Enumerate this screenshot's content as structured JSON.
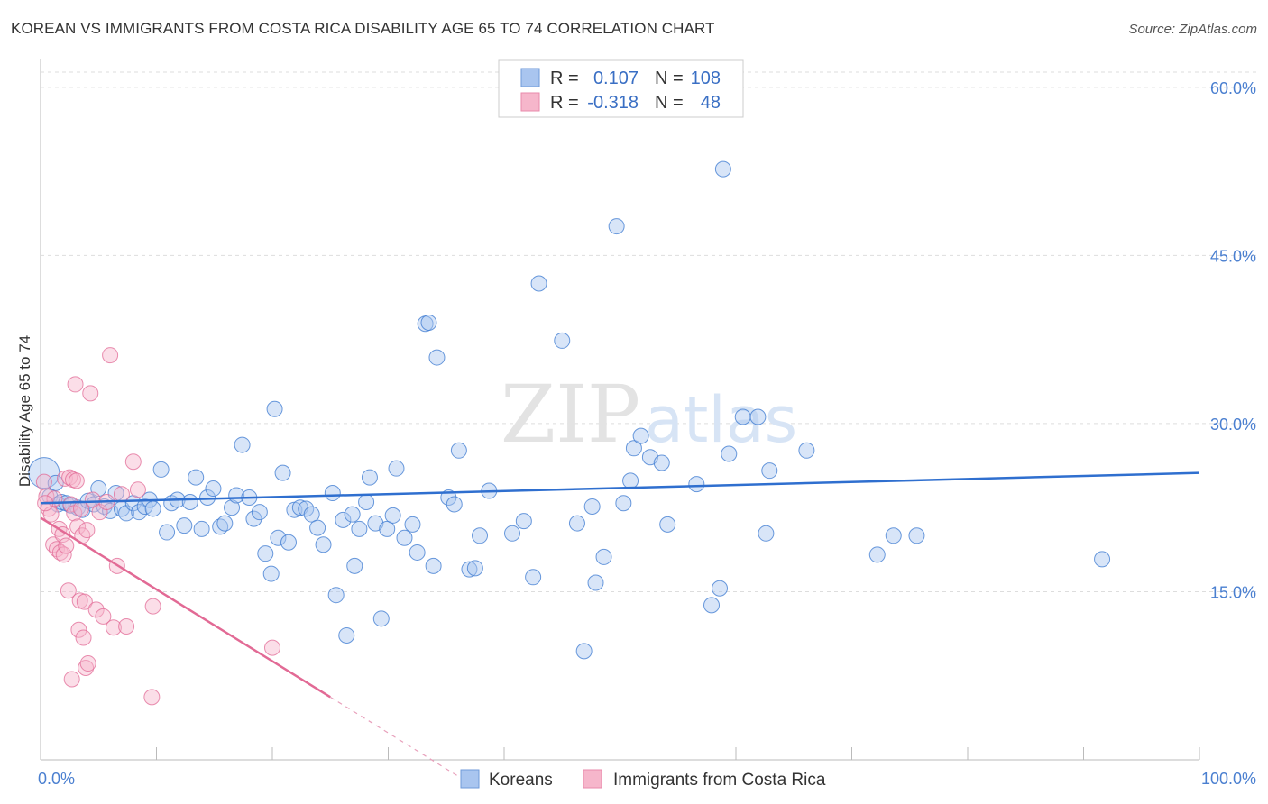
{
  "title": "KOREAN VS IMMIGRANTS FROM COSTA RICA DISABILITY AGE 65 TO 74 CORRELATION CHART",
  "source": "Source: ZipAtlas.com",
  "watermark": {
    "zip": "ZIP",
    "atlas": "atlas"
  },
  "colors": {
    "blue": "#3a78d0",
    "blue_fill": "#a9c5ef",
    "pink": "#e26a95",
    "pink_fill": "#f6b6cb",
    "grid": "#dddddd"
  },
  "chart_data": {
    "type": "scatter",
    "title": "KOREAN VS IMMIGRANTS FROM COSTA RICA DISABILITY AGE 65 TO 74 CORRELATION CHART",
    "xlabel": "",
    "ylabel": "Disability Age 65 to 74",
    "xlim": [
      0,
      100
    ],
    "ylim": [
      0,
      62
    ],
    "x_tick_labels": [
      "0.0%",
      "100.0%"
    ],
    "y_ticks": [
      15,
      30,
      45,
      60
    ],
    "y_tick_labels": [
      "15.0%",
      "30.0%",
      "45.0%",
      "60.0%"
    ],
    "grid": true,
    "legend_position": "top-center",
    "stats_legend": [
      {
        "r_label": "R =",
        "r_value": "0.107",
        "n_label": "N =",
        "n_value": "108"
      },
      {
        "r_label": "R =",
        "r_value": "-0.318",
        "n_label": "N =",
        "n_value": "48"
      }
    ],
    "series": [
      {
        "name": "Koreans",
        "color": "#3a78d0",
        "trend": {
          "x": [
            0,
            100
          ],
          "y": [
            22.9,
            25.6
          ]
        },
        "points": [
          [
            0.3,
            25.6
          ],
          [
            0.8,
            23.5
          ],
          [
            1.3,
            24.7
          ],
          [
            1.5,
            22.8
          ],
          [
            1.8,
            23.0
          ],
          [
            2.2,
            22.9
          ],
          [
            2.6,
            22.7
          ],
          [
            3.2,
            22.5
          ],
          [
            3.6,
            22.3
          ],
          [
            4.1,
            23.1
          ],
          [
            4.6,
            22.8
          ],
          [
            5.0,
            24.2
          ],
          [
            5.5,
            22.6
          ],
          [
            6.0,
            22.2
          ],
          [
            6.5,
            23.8
          ],
          [
            7.0,
            22.4
          ],
          [
            7.4,
            22.0
          ],
          [
            8.0,
            22.9
          ],
          [
            8.5,
            22.1
          ],
          [
            9.0,
            22.6
          ],
          [
            9.4,
            23.2
          ],
          [
            9.7,
            22.4
          ],
          [
            10.4,
            25.9
          ],
          [
            10.9,
            20.3
          ],
          [
            11.3,
            22.9
          ],
          [
            11.8,
            23.2
          ],
          [
            12.4,
            20.9
          ],
          [
            12.9,
            23.0
          ],
          [
            13.4,
            25.2
          ],
          [
            13.9,
            20.6
          ],
          [
            14.4,
            23.4
          ],
          [
            14.9,
            24.2
          ],
          [
            15.5,
            20.8
          ],
          [
            15.9,
            21.1
          ],
          [
            16.5,
            22.5
          ],
          [
            16.9,
            23.6
          ],
          [
            17.4,
            28.1
          ],
          [
            18.0,
            23.4
          ],
          [
            18.4,
            21.5
          ],
          [
            18.9,
            22.1
          ],
          [
            19.4,
            18.4
          ],
          [
            19.9,
            16.6
          ],
          [
            20.2,
            31.3
          ],
          [
            20.5,
            19.8
          ],
          [
            20.9,
            25.6
          ],
          [
            21.4,
            19.4
          ],
          [
            21.9,
            22.3
          ],
          [
            22.4,
            22.5
          ],
          [
            22.9,
            22.4
          ],
          [
            23.4,
            21.9
          ],
          [
            23.9,
            20.7
          ],
          [
            24.4,
            19.2
          ],
          [
            25.2,
            23.8
          ],
          [
            25.5,
            14.7
          ],
          [
            26.1,
            21.4
          ],
          [
            26.4,
            11.1
          ],
          [
            26.9,
            21.9
          ],
          [
            27.1,
            17.3
          ],
          [
            27.5,
            20.6
          ],
          [
            28.1,
            23.0
          ],
          [
            28.4,
            25.2
          ],
          [
            28.9,
            21.1
          ],
          [
            29.4,
            12.6
          ],
          [
            29.9,
            20.6
          ],
          [
            30.4,
            21.8
          ],
          [
            30.7,
            26.0
          ],
          [
            31.4,
            19.8
          ],
          [
            32.1,
            21.0
          ],
          [
            32.5,
            18.5
          ],
          [
            33.2,
            38.9
          ],
          [
            33.5,
            39.0
          ],
          [
            33.9,
            17.3
          ],
          [
            34.2,
            35.9
          ],
          [
            35.2,
            23.4
          ],
          [
            35.7,
            22.8
          ],
          [
            36.1,
            27.6
          ],
          [
            37.0,
            17.0
          ],
          [
            37.5,
            17.1
          ],
          [
            37.9,
            20.0
          ],
          [
            38.7,
            24.0
          ],
          [
            40.7,
            20.2
          ],
          [
            41.7,
            21.3
          ],
          [
            42.5,
            16.3
          ],
          [
            43.0,
            42.5
          ],
          [
            45.0,
            37.4
          ],
          [
            46.3,
            21.1
          ],
          [
            46.9,
            9.7
          ],
          [
            47.6,
            22.6
          ],
          [
            47.9,
            15.8
          ],
          [
            48.6,
            18.1
          ],
          [
            49.7,
            47.6
          ],
          [
            50.3,
            22.9
          ],
          [
            50.9,
            24.9
          ],
          [
            51.2,
            27.8
          ],
          [
            51.8,
            28.9
          ],
          [
            52.6,
            27.0
          ],
          [
            53.6,
            26.5
          ],
          [
            54.1,
            21.0
          ],
          [
            56.6,
            24.6
          ],
          [
            57.9,
            13.8
          ],
          [
            58.6,
            15.3
          ],
          [
            58.9,
            52.7
          ],
          [
            59.4,
            27.3
          ],
          [
            60.6,
            30.6
          ],
          [
            61.9,
            30.6
          ],
          [
            62.6,
            20.2
          ],
          [
            62.9,
            25.8
          ],
          [
            66.1,
            27.6
          ],
          [
            72.2,
            18.3
          ],
          [
            73.6,
            20.0
          ],
          [
            75.6,
            20.0
          ],
          [
            91.6,
            17.9
          ]
        ]
      },
      {
        "name": "Immigrants from Costa Rica",
        "color": "#e26a95",
        "trend": {
          "x": [
            0,
            25
          ],
          "y": [
            21.6,
            5.6
          ]
        },
        "trend_dashed": {
          "x": [
            25,
            37.5
          ],
          "y": [
            5.6,
            -2.4
          ]
        },
        "points": [
          [
            0.3,
            24.8
          ],
          [
            0.5,
            23.5
          ],
          [
            0.7,
            22.4
          ],
          [
            0.9,
            21.9
          ],
          [
            1.1,
            19.2
          ],
          [
            1.2,
            23.3
          ],
          [
            1.4,
            18.8
          ],
          [
            1.6,
            20.6
          ],
          [
            1.7,
            18.5
          ],
          [
            1.9,
            20.1
          ],
          [
            2.0,
            18.3
          ],
          [
            2.1,
            25.1
          ],
          [
            2.2,
            19.1
          ],
          [
            2.4,
            15.1
          ],
          [
            2.5,
            25.2
          ],
          [
            2.6,
            22.8
          ],
          [
            2.7,
            7.2
          ],
          [
            2.8,
            25.0
          ],
          [
            2.9,
            22.0
          ],
          [
            3.0,
            33.5
          ],
          [
            3.1,
            24.9
          ],
          [
            3.2,
            20.8
          ],
          [
            3.3,
            11.6
          ],
          [
            3.4,
            14.2
          ],
          [
            3.5,
            22.4
          ],
          [
            3.6,
            20.0
          ],
          [
            3.7,
            10.9
          ],
          [
            3.8,
            14.1
          ],
          [
            3.9,
            8.2
          ],
          [
            4.0,
            20.5
          ],
          [
            4.1,
            8.6
          ],
          [
            4.3,
            32.7
          ],
          [
            4.5,
            23.2
          ],
          [
            4.8,
            13.4
          ],
          [
            5.1,
            22.1
          ],
          [
            5.4,
            12.8
          ],
          [
            5.7,
            23.0
          ],
          [
            6.0,
            36.1
          ],
          [
            6.3,
            11.8
          ],
          [
            6.6,
            17.3
          ],
          [
            7.0,
            23.7
          ],
          [
            7.4,
            11.9
          ],
          [
            8.0,
            26.6
          ],
          [
            8.4,
            24.1
          ],
          [
            9.6,
            5.6
          ],
          [
            9.7,
            13.7
          ],
          [
            20.0,
            10.0
          ],
          [
            0.4,
            22.9
          ]
        ]
      }
    ]
  },
  "bottom_legend": [
    {
      "label": "Koreans"
    },
    {
      "label": "Immigrants from Costa Rica"
    }
  ]
}
